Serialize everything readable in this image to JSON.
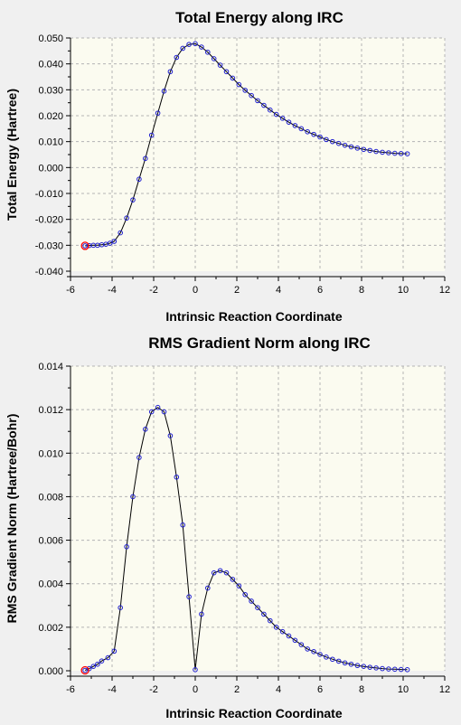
{
  "colors": {
    "background": "#f0f0f0",
    "plot_background": "#fbfbf0",
    "point": "#2020d0",
    "highlight": "#ff0000",
    "line": "#000000",
    "grid": "#b4b4b4"
  },
  "chart_data": [
    {
      "type": "line",
      "title": "Total Energy along IRC",
      "xlabel": "Intrinsic Reaction Coordinate",
      "ylabel": "Total Energy (Hartree)",
      "xlim": [
        -6,
        12
      ],
      "ylim": [
        -0.04,
        0.05
      ],
      "xticks": [
        -6,
        -4,
        -2,
        0,
        2,
        4,
        6,
        8,
        10,
        12
      ],
      "xtick_labels": [
        "-6",
        "-4",
        "-2",
        "0",
        "2",
        "4",
        "6",
        "8",
        "10",
        "12"
      ],
      "yticks": [
        -0.04,
        -0.03,
        -0.02,
        -0.01,
        0,
        0.01,
        0.02,
        0.03,
        0.04,
        0.05
      ],
      "ytick_labels": [
        "-0.040",
        "-0.030",
        "-0.020",
        "-0.010",
        "0.000",
        "0.010",
        "0.020",
        "0.030",
        "0.040",
        "0.050"
      ],
      "grid": true,
      "highlighted_point_index": 0,
      "series": [
        {
          "x": [
            -5.3,
            -5.1,
            -4.9,
            -4.7,
            -4.5,
            -4.3,
            -4.1,
            -3.9,
            -3.6,
            -3.3,
            -3.0,
            -2.7,
            -2.4,
            -2.1,
            -1.8,
            -1.5,
            -1.2,
            -0.9,
            -0.6,
            -0.3,
            0.0,
            0.3,
            0.6,
            0.9,
            1.2,
            1.5,
            1.8,
            2.1,
            2.4,
            2.7,
            3.0,
            3.3,
            3.6,
            3.9,
            4.2,
            4.5,
            4.8,
            5.1,
            5.4,
            5.7,
            6.0,
            6.3,
            6.6,
            6.9,
            7.2,
            7.5,
            7.8,
            8.1,
            8.4,
            8.7,
            9.0,
            9.3,
            9.6,
            9.9,
            10.2
          ],
          "y": [
            -0.0302,
            -0.0301,
            -0.03,
            -0.03,
            -0.0298,
            -0.0296,
            -0.0292,
            -0.0285,
            -0.0252,
            -0.0195,
            -0.0125,
            -0.0045,
            0.0035,
            0.0125,
            0.021,
            0.0295,
            0.037,
            0.0425,
            0.046,
            0.0475,
            0.0478,
            0.0465,
            0.0445,
            0.042,
            0.0395,
            0.037,
            0.0345,
            0.032,
            0.0298,
            0.0278,
            0.0258,
            0.024,
            0.0222,
            0.0205,
            0.019,
            0.0175,
            0.0162,
            0.015,
            0.0138,
            0.0128,
            0.0118,
            0.0108,
            0.01,
            0.0093,
            0.0086,
            0.008,
            0.0075,
            0.007,
            0.0066,
            0.0062,
            0.0059,
            0.0057,
            0.0055,
            0.0054,
            0.0053
          ]
        }
      ]
    },
    {
      "type": "line",
      "title": "RMS Gradient Norm along IRC",
      "xlabel": "Intrinsic Reaction Coordinate",
      "ylabel": "RMS Gradient Norm (Hartree/Bohr)",
      "xlim": [
        -6,
        12
      ],
      "ylim": [
        0,
        0.014
      ],
      "xticks": [
        -6,
        -4,
        -2,
        0,
        2,
        4,
        6,
        8,
        10,
        12
      ],
      "xtick_labels": [
        "-6",
        "-4",
        "-2",
        "0",
        "2",
        "4",
        "6",
        "8",
        "10",
        "12"
      ],
      "yticks": [
        0,
        0.002,
        0.004,
        0.006,
        0.008,
        0.01,
        0.012,
        0.014
      ],
      "ytick_labels": [
        "0.000",
        "0.002",
        "0.004",
        "0.006",
        "0.008",
        "0.010",
        "0.012",
        "0.014"
      ],
      "grid": true,
      "highlighted_point_index": 0,
      "series": [
        {
          "x": [
            -5.3,
            -5.1,
            -4.9,
            -4.7,
            -4.5,
            -4.2,
            -3.9,
            -3.6,
            -3.3,
            -3.0,
            -2.7,
            -2.4,
            -2.1,
            -1.8,
            -1.5,
            -1.2,
            -0.9,
            -0.6,
            -0.3,
            0.0,
            0.3,
            0.6,
            0.9,
            1.2,
            1.5,
            1.8,
            2.1,
            2.4,
            2.7,
            3.0,
            3.3,
            3.6,
            3.9,
            4.2,
            4.5,
            4.8,
            5.1,
            5.4,
            5.7,
            6.0,
            6.3,
            6.6,
            6.9,
            7.2,
            7.5,
            7.8,
            8.1,
            8.4,
            8.7,
            9.0,
            9.3,
            9.6,
            9.9,
            10.2
          ],
          "y": [
            2e-05,
            0.0001,
            0.0002,
            0.0003,
            0.00045,
            0.0006,
            0.0009,
            0.0029,
            0.0057,
            0.008,
            0.0098,
            0.0111,
            0.0119,
            0.0121,
            0.0119,
            0.0108,
            0.0089,
            0.0067,
            0.0034,
            5e-05,
            0.0026,
            0.0038,
            0.0045,
            0.0046,
            0.0045,
            0.0042,
            0.0039,
            0.0035,
            0.0032,
            0.0029,
            0.0026,
            0.0023,
            0.002,
            0.0018,
            0.0016,
            0.0014,
            0.0012,
            0.001,
            0.00088,
            0.00075,
            0.00063,
            0.00053,
            0.00044,
            0.00036,
            0.0003,
            0.00024,
            0.0002,
            0.00016,
            0.00013,
            0.0001,
            8e-05,
            7e-05,
            6e-05,
            5e-05
          ]
        }
      ]
    }
  ]
}
